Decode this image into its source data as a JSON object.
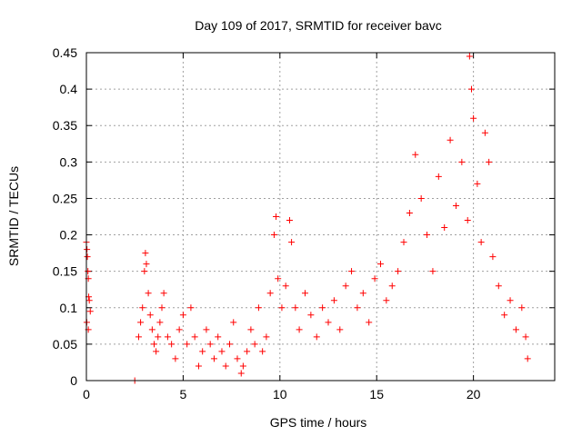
{
  "chart_data": {
    "type": "scatter",
    "title": "Day 109 of 2017, SRMTID for receiver bavc",
    "xlabel": "GPS time / hours",
    "ylabel": "SRMTID / TECUs",
    "xlim": [
      0,
      24.2
    ],
    "ylim": [
      0,
      0.45
    ],
    "x_ticks": [
      0,
      5,
      10,
      15,
      20
    ],
    "y_ticks": [
      0,
      0.05,
      0.1,
      0.15,
      0.2,
      0.25,
      0.3,
      0.35,
      0.4,
      0.45
    ],
    "x_tick_labels": [
      "0",
      "5",
      "10",
      "15",
      "20"
    ],
    "y_tick_labels": [
      "0",
      "0.05",
      "0.1",
      "0.15",
      "0.2",
      "0.25",
      "0.3",
      "0.35",
      "0.4",
      "0.45"
    ],
    "grid": true,
    "marker": "plus",
    "color": "#ff0000",
    "series": [
      {
        "name": "SRMTID",
        "points": [
          [
            0.0,
            0.19
          ],
          [
            0.05,
            0.17
          ],
          [
            0.08,
            0.15
          ],
          [
            0.1,
            0.14
          ],
          [
            0.12,
            0.115
          ],
          [
            0.15,
            0.11
          ],
          [
            0.2,
            0.095
          ],
          [
            0.02,
            0.08
          ],
          [
            0.1,
            0.07
          ],
          [
            0.03,
            0.18
          ],
          [
            2.5,
            0.0
          ],
          [
            2.7,
            0.06
          ],
          [
            2.8,
            0.08
          ],
          [
            2.9,
            0.1
          ],
          [
            3.0,
            0.15
          ],
          [
            3.05,
            0.175
          ],
          [
            3.1,
            0.16
          ],
          [
            3.2,
            0.12
          ],
          [
            3.3,
            0.09
          ],
          [
            3.4,
            0.07
          ],
          [
            3.5,
            0.05
          ],
          [
            3.6,
            0.04
          ],
          [
            3.7,
            0.06
          ],
          [
            3.8,
            0.08
          ],
          [
            3.9,
            0.1
          ],
          [
            4.0,
            0.12
          ],
          [
            4.2,
            0.06
          ],
          [
            4.4,
            0.05
          ],
          [
            4.6,
            0.03
          ],
          [
            4.8,
            0.07
          ],
          [
            5.0,
            0.09
          ],
          [
            5.2,
            0.05
          ],
          [
            5.4,
            0.1
          ],
          [
            5.6,
            0.06
          ],
          [
            5.8,
            0.02
          ],
          [
            6.0,
            0.04
          ],
          [
            6.2,
            0.07
          ],
          [
            6.4,
            0.05
          ],
          [
            6.6,
            0.03
          ],
          [
            6.8,
            0.06
          ],
          [
            7.0,
            0.04
          ],
          [
            7.2,
            0.02
          ],
          [
            7.4,
            0.05
          ],
          [
            7.6,
            0.08
          ],
          [
            7.8,
            0.03
          ],
          [
            8.0,
            0.01
          ],
          [
            8.1,
            0.02
          ],
          [
            8.3,
            0.04
          ],
          [
            8.5,
            0.07
          ],
          [
            8.7,
            0.05
          ],
          [
            8.9,
            0.1
          ],
          [
            9.1,
            0.04
          ],
          [
            9.3,
            0.06
          ],
          [
            9.5,
            0.12
          ],
          [
            9.7,
            0.2
          ],
          [
            9.8,
            0.225
          ],
          [
            9.9,
            0.14
          ],
          [
            10.1,
            0.1
          ],
          [
            10.3,
            0.13
          ],
          [
            10.5,
            0.22
          ],
          [
            10.6,
            0.19
          ],
          [
            10.8,
            0.1
          ],
          [
            11.0,
            0.07
          ],
          [
            11.3,
            0.12
          ],
          [
            11.6,
            0.09
          ],
          [
            11.9,
            0.06
          ],
          [
            12.2,
            0.1
          ],
          [
            12.5,
            0.08
          ],
          [
            12.8,
            0.11
          ],
          [
            13.1,
            0.07
          ],
          [
            13.4,
            0.13
          ],
          [
            13.7,
            0.15
          ],
          [
            14.0,
            0.1
          ],
          [
            14.3,
            0.12
          ],
          [
            14.6,
            0.08
          ],
          [
            14.9,
            0.14
          ],
          [
            15.2,
            0.16
          ],
          [
            15.5,
            0.11
          ],
          [
            15.8,
            0.13
          ],
          [
            16.1,
            0.15
          ],
          [
            16.4,
            0.19
          ],
          [
            16.7,
            0.23
          ],
          [
            17.0,
            0.31
          ],
          [
            17.3,
            0.25
          ],
          [
            17.6,
            0.2
          ],
          [
            17.9,
            0.15
          ],
          [
            18.2,
            0.28
          ],
          [
            18.5,
            0.21
          ],
          [
            18.8,
            0.33
          ],
          [
            19.1,
            0.24
          ],
          [
            19.4,
            0.3
          ],
          [
            19.7,
            0.22
          ],
          [
            19.8,
            0.445
          ],
          [
            19.9,
            0.4
          ],
          [
            20.0,
            0.36
          ],
          [
            20.2,
            0.27
          ],
          [
            20.4,
            0.19
          ],
          [
            20.6,
            0.34
          ],
          [
            20.8,
            0.3
          ],
          [
            21.0,
            0.17
          ],
          [
            21.3,
            0.13
          ],
          [
            21.6,
            0.09
          ],
          [
            21.9,
            0.11
          ],
          [
            22.2,
            0.07
          ],
          [
            22.5,
            0.1
          ],
          [
            22.7,
            0.06
          ],
          [
            22.8,
            0.03
          ]
        ]
      }
    ]
  }
}
